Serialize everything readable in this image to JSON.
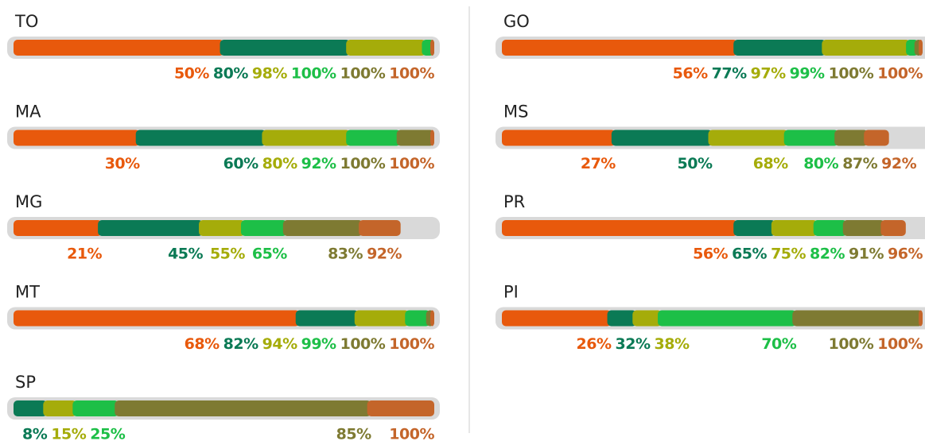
{
  "chart_data": {
    "type": "cumulative-bar",
    "xlim": [
      0,
      100
    ],
    "colors": [
      "#e8590c",
      "#0b7a55",
      "#a5ac0a",
      "#1dbf47",
      "#7e7a32",
      "#c4652a"
    ],
    "states": [
      {
        "name": "TO",
        "values": [
          50,
          80,
          98,
          100,
          100,
          100
        ],
        "value_labels": [
          "50%",
          "80%",
          "98%",
          "100%",
          "100%",
          "100%"
        ]
      },
      {
        "name": "MA",
        "values": [
          30,
          60,
          80,
          92,
          100,
          100
        ],
        "value_labels": [
          "30%",
          "60%",
          "80%",
          "92%",
          "100%",
          "100%"
        ]
      },
      {
        "name": "MG",
        "values": [
          21,
          45,
          55,
          65,
          83,
          92
        ],
        "value_labels": [
          "21%",
          "45%",
          "55%",
          "65%",
          "83%",
          "92%"
        ]
      },
      {
        "name": "MT",
        "values": [
          68,
          82,
          94,
          99,
          100,
          100
        ],
        "value_labels": [
          "68%",
          "82%",
          "94%",
          "99%",
          "100%",
          "100%"
        ]
      },
      {
        "name": "SP",
        "values": [
          null,
          8,
          15,
          25,
          85,
          100
        ],
        "value_labels": [
          null,
          "8%",
          "15%",
          "25%",
          "85%",
          "100%"
        ]
      },
      {
        "name": "GO",
        "values": [
          56,
          77,
          97,
          99,
          100,
          100
        ],
        "value_labels": [
          "56%",
          "77%",
          "97%",
          "99%",
          "100%",
          "100%"
        ]
      },
      {
        "name": "MS",
        "values": [
          27,
          50,
          68,
          80,
          87,
          92
        ],
        "value_labels": [
          "27%",
          "50%",
          "68%",
          "80%",
          "87%",
          "92%"
        ]
      },
      {
        "name": "PR",
        "values": [
          56,
          65,
          75,
          82,
          91,
          96
        ],
        "value_labels": [
          "56%",
          "65%",
          "75%",
          "82%",
          "91%",
          "96%"
        ]
      },
      {
        "name": "PI",
        "values": [
          26,
          32,
          38,
          70,
          100,
          100
        ],
        "value_labels": [
          "26%",
          "32%",
          "38%",
          "70%",
          "100%",
          "100%"
        ]
      }
    ]
  }
}
